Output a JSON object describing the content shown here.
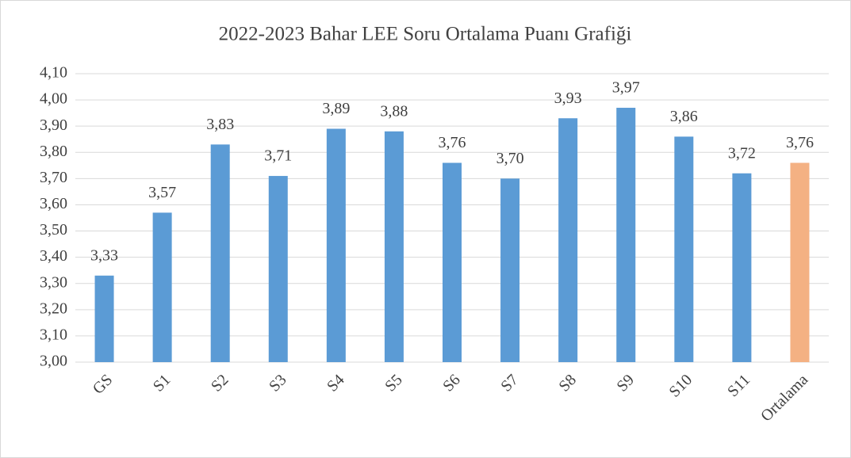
{
  "chart_data": {
    "type": "bar",
    "title": "2022-2023 Bahar LEE Soru Ortalama Puanı Grafiği",
    "categories": [
      "GS",
      "S1",
      "S2",
      "S3",
      "S4",
      "S5",
      "S6",
      "S7",
      "S8",
      "S9",
      "S10",
      "S11",
      "Ortalama"
    ],
    "values": [
      3.33,
      3.57,
      3.83,
      3.71,
      3.89,
      3.88,
      3.76,
      3.7,
      3.93,
      3.97,
      3.86,
      3.72,
      3.76
    ],
    "value_labels": [
      "3,33",
      "3,57",
      "3,83",
      "3,71",
      "3,89",
      "3,88",
      "3,76",
      "3,70",
      "3,93",
      "3,97",
      "3,86",
      "3,72",
      "3,76"
    ],
    "colors": [
      "#5b9bd5",
      "#5b9bd5",
      "#5b9bd5",
      "#5b9bd5",
      "#5b9bd5",
      "#5b9bd5",
      "#5b9bd5",
      "#5b9bd5",
      "#5b9bd5",
      "#5b9bd5",
      "#5b9bd5",
      "#5b9bd5",
      "#f4b183"
    ],
    "ylim": [
      3.0,
      4.1
    ],
    "yticks": [
      {
        "value": 3.0,
        "label": "3,00"
      },
      {
        "value": 3.1,
        "label": "3,10"
      },
      {
        "value": 3.2,
        "label": "3,20"
      },
      {
        "value": 3.3,
        "label": "3,30"
      },
      {
        "value": 3.4,
        "label": "3,40"
      },
      {
        "value": 3.5,
        "label": "3,50"
      },
      {
        "value": 3.6,
        "label": "3,60"
      },
      {
        "value": 3.7,
        "label": "3,70"
      },
      {
        "value": 3.8,
        "label": "3,80"
      },
      {
        "value": 3.9,
        "label": "3,90"
      },
      {
        "value": 4.0,
        "label": "4,00"
      },
      {
        "value": 4.1,
        "label": "4,10"
      }
    ],
    "grid": true
  }
}
